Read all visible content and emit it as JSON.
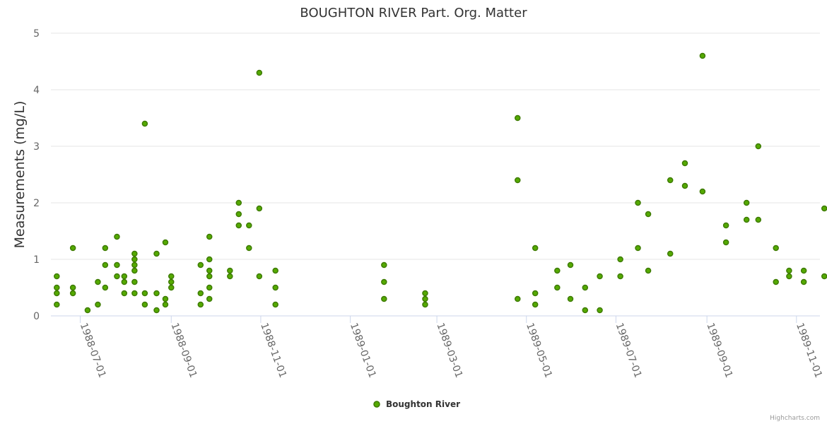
{
  "chart_data": {
    "type": "scatter",
    "title": "BOUGHTON RIVER Part. Org. Matter",
    "ylabel": "Measurements (mg/L)",
    "xlabel": "",
    "ylim": [
      0,
      5
    ],
    "yticks": [
      0,
      1,
      2,
      3,
      4,
      5
    ],
    "xlim": [
      "1988-06-11",
      "1989-11-17"
    ],
    "xticks": [
      "1988-07-01",
      "1988-09-01",
      "1988-11-01",
      "1989-01-01",
      "1989-03-01",
      "1989-05-01",
      "1989-07-01",
      "1989-09-01",
      "1989-11-01"
    ],
    "legend_position": "bottom-center",
    "credits": "Highcharts.com",
    "series": [
      {
        "name": "Boughton River",
        "color": "#55aa00",
        "stroke": "#3d7a00",
        "points": [
          {
            "x": "1988-06-15",
            "y": 0.7
          },
          {
            "x": "1988-06-15",
            "y": 0.5
          },
          {
            "x": "1988-06-15",
            "y": 0.4
          },
          {
            "x": "1988-06-15",
            "y": 0.2
          },
          {
            "x": "1988-06-26",
            "y": 1.2
          },
          {
            "x": "1988-06-26",
            "y": 0.5
          },
          {
            "x": "1988-06-26",
            "y": 0.4
          },
          {
            "x": "1988-07-06",
            "y": 0.1
          },
          {
            "x": "1988-07-13",
            "y": 0.6
          },
          {
            "x": "1988-07-13",
            "y": 0.2
          },
          {
            "x": "1988-07-18",
            "y": 1.2
          },
          {
            "x": "1988-07-18",
            "y": 0.9
          },
          {
            "x": "1988-07-18",
            "y": 0.5
          },
          {
            "x": "1988-07-26",
            "y": 1.4
          },
          {
            "x": "1988-07-26",
            "y": 0.9
          },
          {
            "x": "1988-07-26",
            "y": 0.7
          },
          {
            "x": "1988-07-31",
            "y": 0.7
          },
          {
            "x": "1988-07-31",
            "y": 0.6
          },
          {
            "x": "1988-07-31",
            "y": 0.4
          },
          {
            "x": "1988-08-07",
            "y": 1.1
          },
          {
            "x": "1988-08-07",
            "y": 1.0
          },
          {
            "x": "1988-08-07",
            "y": 0.9
          },
          {
            "x": "1988-08-07",
            "y": 0.8
          },
          {
            "x": "1988-08-07",
            "y": 0.6
          },
          {
            "x": "1988-08-07",
            "y": 0.4
          },
          {
            "x": "1988-08-14",
            "y": 3.4
          },
          {
            "x": "1988-08-14",
            "y": 0.4
          },
          {
            "x": "1988-08-14",
            "y": 0.2
          },
          {
            "x": "1988-08-22",
            "y": 1.1
          },
          {
            "x": "1988-08-22",
            "y": 0.4
          },
          {
            "x": "1988-08-22",
            "y": 0.1
          },
          {
            "x": "1988-08-28",
            "y": 1.3
          },
          {
            "x": "1988-08-28",
            "y": 0.3
          },
          {
            "x": "1988-08-28",
            "y": 0.2
          },
          {
            "x": "1988-09-01",
            "y": 0.7
          },
          {
            "x": "1988-09-01",
            "y": 0.6
          },
          {
            "x": "1988-09-01",
            "y": 0.5
          },
          {
            "x": "1988-09-21",
            "y": 0.9
          },
          {
            "x": "1988-09-21",
            "y": 0.4
          },
          {
            "x": "1988-09-21",
            "y": 0.2
          },
          {
            "x": "1988-09-27",
            "y": 1.4
          },
          {
            "x": "1988-09-27",
            "y": 1.0
          },
          {
            "x": "1988-09-27",
            "y": 0.8
          },
          {
            "x": "1988-09-27",
            "y": 0.7
          },
          {
            "x": "1988-09-27",
            "y": 0.5
          },
          {
            "x": "1988-09-27",
            "y": 0.3
          },
          {
            "x": "1988-10-11",
            "y": 0.8
          },
          {
            "x": "1988-10-11",
            "y": 0.7
          },
          {
            "x": "1988-10-17",
            "y": 2.0
          },
          {
            "x": "1988-10-17",
            "y": 1.8
          },
          {
            "x": "1988-10-17",
            "y": 1.6
          },
          {
            "x": "1988-10-24",
            "y": 1.6
          },
          {
            "x": "1988-10-24",
            "y": 1.2
          },
          {
            "x": "1988-10-31",
            "y": 4.3
          },
          {
            "x": "1988-10-31",
            "y": 1.9
          },
          {
            "x": "1988-10-31",
            "y": 0.7
          },
          {
            "x": "1988-11-11",
            "y": 0.8
          },
          {
            "x": "1988-11-11",
            "y": 0.5
          },
          {
            "x": "1988-11-11",
            "y": 0.2
          },
          {
            "x": "1989-01-24",
            "y": 0.9
          },
          {
            "x": "1989-01-24",
            "y": 0.6
          },
          {
            "x": "1989-01-24",
            "y": 0.3
          },
          {
            "x": "1989-02-21",
            "y": 0.4
          },
          {
            "x": "1989-02-21",
            "y": 0.3
          },
          {
            "x": "1989-02-21",
            "y": 0.2
          },
          {
            "x": "1989-04-25",
            "y": 3.5
          },
          {
            "x": "1989-04-25",
            "y": 2.4
          },
          {
            "x": "1989-04-25",
            "y": 0.3
          },
          {
            "x": "1989-05-07",
            "y": 1.2
          },
          {
            "x": "1989-05-07",
            "y": 0.4
          },
          {
            "x": "1989-05-07",
            "y": 0.2
          },
          {
            "x": "1989-05-22",
            "y": 0.8
          },
          {
            "x": "1989-05-22",
            "y": 0.5
          },
          {
            "x": "1989-05-31",
            "y": 0.9
          },
          {
            "x": "1989-05-31",
            "y": 0.3
          },
          {
            "x": "1989-06-10",
            "y": 0.5
          },
          {
            "x": "1989-06-10",
            "y": 0.1
          },
          {
            "x": "1989-06-20",
            "y": 0.7
          },
          {
            "x": "1989-06-20",
            "y": 0.1
          },
          {
            "x": "1989-07-04",
            "y": 1.0
          },
          {
            "x": "1989-07-04",
            "y": 0.7
          },
          {
            "x": "1989-07-16",
            "y": 2.0
          },
          {
            "x": "1989-07-16",
            "y": 1.2
          },
          {
            "x": "1989-07-23",
            "y": 1.8
          },
          {
            "x": "1989-07-23",
            "y": 0.8
          },
          {
            "x": "1989-08-07",
            "y": 2.4
          },
          {
            "x": "1989-08-07",
            "y": 1.1
          },
          {
            "x": "1989-08-17",
            "y": 2.7
          },
          {
            "x": "1989-08-17",
            "y": 2.3
          },
          {
            "x": "1989-08-29",
            "y": 4.6
          },
          {
            "x": "1989-08-29",
            "y": 2.2
          },
          {
            "x": "1989-09-14",
            "y": 1.6
          },
          {
            "x": "1989-09-14",
            "y": 1.3
          },
          {
            "x": "1989-09-28",
            "y": 2.0
          },
          {
            "x": "1989-09-28",
            "y": 1.7
          },
          {
            "x": "1989-10-06",
            "y": 3.0
          },
          {
            "x": "1989-10-06",
            "y": 1.7
          },
          {
            "x": "1989-10-18",
            "y": 1.2
          },
          {
            "x": "1989-10-18",
            "y": 0.6
          },
          {
            "x": "1989-10-27",
            "y": 0.8
          },
          {
            "x": "1989-10-27",
            "y": 0.7
          },
          {
            "x": "1989-11-06",
            "y": 0.8
          },
          {
            "x": "1989-11-06",
            "y": 0.6
          },
          {
            "x": "1989-11-20",
            "y": 1.9
          },
          {
            "x": "1989-11-20",
            "y": 0.7
          }
        ]
      }
    ]
  }
}
